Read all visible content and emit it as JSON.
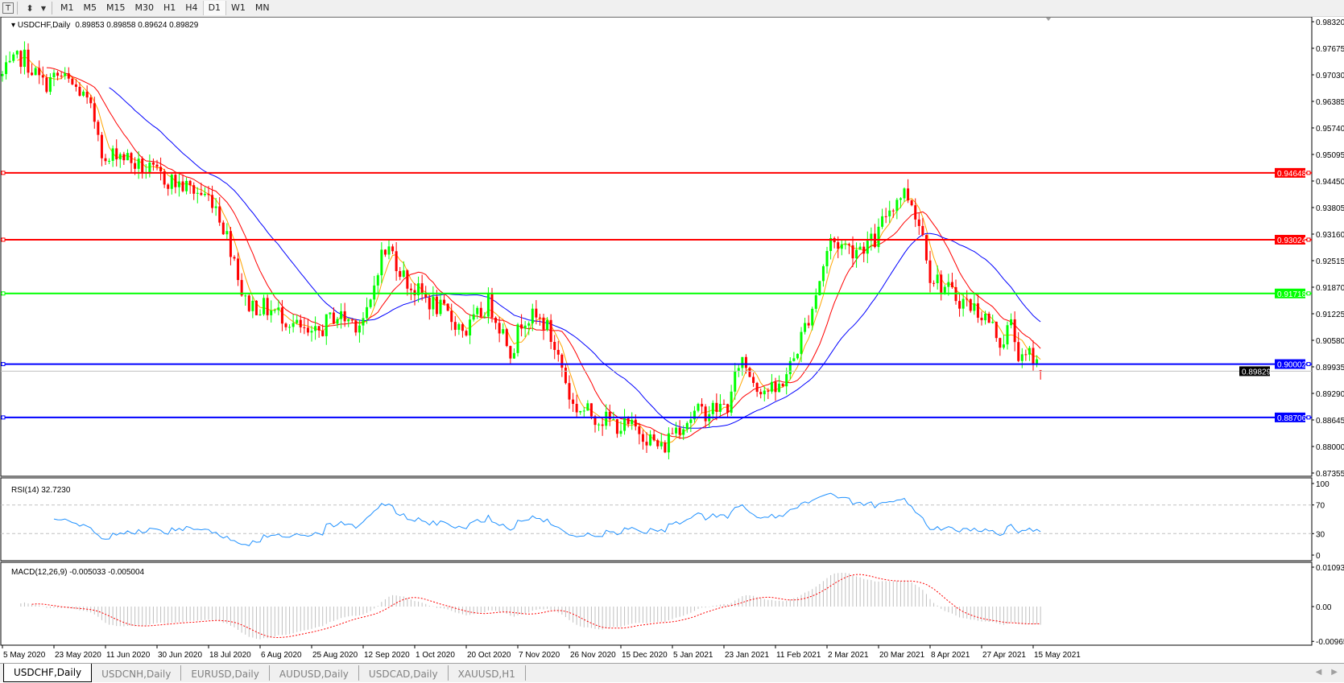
{
  "toolbar": {
    "icons": [
      "text-tool-icon",
      "arrow-shapes-icon"
    ],
    "text_icon_glyph": "T",
    "shapes_icon_glyph": "⬍",
    "dropdown_glyph": "▼",
    "timeframes": [
      "M1",
      "M5",
      "M15",
      "M30",
      "H1",
      "H4",
      "D1",
      "W1",
      "MN"
    ],
    "active_timeframe": "D1"
  },
  "chart": {
    "symbol_label": "USDCHF,Daily",
    "ohlc": "0.89853 0.89858 0.89624 0.89829",
    "last_ohlc": {
      "open": 0.89853,
      "high": 0.89858,
      "low": 0.89624,
      "close": 0.89829
    },
    "current_price": "0.89829",
    "bull_color": "#00ff00",
    "bear_color": "#ff0000",
    "price_axis": [
      "0.98320",
      "0.97675",
      "0.97030",
      "0.96385",
      "0.95740",
      "0.95095",
      "0.94450",
      "0.93805",
      "0.93160",
      "0.92515",
      "0.91870",
      "0.91225",
      "0.90580",
      "0.89935",
      "0.89290",
      "0.88645",
      "0.88000",
      "0.87355"
    ],
    "price_range": [
      0.87355,
      0.9832
    ],
    "levels": [
      {
        "value": "0.94648",
        "color": "#ff0000"
      },
      {
        "value": "0.93024",
        "color": "#ff0000"
      },
      {
        "value": "0.91718",
        "color": "#00ff00"
      },
      {
        "value": "0.90002",
        "color": "#0000ff"
      },
      {
        "value": "0.88706",
        "color": "#0000ff"
      }
    ],
    "moving_averages": [
      {
        "color": "#ffa500"
      },
      {
        "color": "#ff0000"
      },
      {
        "color": "#0000ff"
      }
    ],
    "date_axis": [
      "5 May 2020",
      "23 May 2020",
      "11 Jun 2020",
      "30 Jun 2020",
      "18 Jul 2020",
      "6 Aug 2020",
      "25 Aug 2020",
      "12 Sep 2020",
      "1 Oct 2020",
      "20 Oct 2020",
      "7 Nov 2020",
      "26 Nov 2020",
      "15 Dec 2020",
      "5 Jan 2021",
      "23 Jan 2021",
      "11 Feb 2021",
      "2 Mar 2021",
      "20 Mar 2021",
      "8 Apr 2021",
      "27 Apr 2021",
      "15 May 2021"
    ],
    "close_keypoints": [
      [
        "2020-05-05",
        0.97
      ],
      [
        "2020-05-12",
        0.975
      ],
      [
        "2020-05-19",
        0.968
      ],
      [
        "2020-05-25",
        0.97
      ],
      [
        "2020-06-02",
        0.966
      ],
      [
        "2020-06-08",
        0.958
      ],
      [
        "2020-06-11",
        0.948
      ],
      [
        "2020-06-15",
        0.952
      ],
      [
        "2020-06-23",
        0.948
      ],
      [
        "2020-06-30",
        0.946
      ],
      [
        "2020-07-10",
        0.943
      ],
      [
        "2020-07-20",
        0.94
      ],
      [
        "2020-07-28",
        0.925
      ],
      [
        "2020-07-31",
        0.915
      ],
      [
        "2020-08-06",
        0.914
      ],
      [
        "2020-08-14",
        0.912
      ],
      [
        "2020-08-25",
        0.906
      ],
      [
        "2020-09-02",
        0.912
      ],
      [
        "2020-09-10",
        0.91
      ],
      [
        "2020-09-14",
        0.912
      ],
      [
        "2020-09-18",
        0.926
      ],
      [
        "2020-09-22",
        0.928
      ],
      [
        "2020-09-28",
        0.92
      ],
      [
        "2020-10-01",
        0.918
      ],
      [
        "2020-10-09",
        0.914
      ],
      [
        "2020-10-20",
        0.908
      ],
      [
        "2020-10-28",
        0.915
      ],
      [
        "2020-11-05",
        0.903
      ],
      [
        "2020-11-09",
        0.912
      ],
      [
        "2020-11-17",
        0.91
      ],
      [
        "2020-11-23",
        0.9
      ],
      [
        "2020-11-27",
        0.89
      ],
      [
        "2020-12-07",
        0.887
      ],
      [
        "2020-12-15",
        0.885
      ],
      [
        "2020-12-23",
        0.884
      ],
      [
        "2021-01-01",
        0.879
      ],
      [
        "2021-01-05",
        0.884
      ],
      [
        "2021-01-13",
        0.888
      ],
      [
        "2021-01-25",
        0.89
      ],
      [
        "2021-01-29",
        0.902
      ],
      [
        "2021-02-04",
        0.895
      ],
      [
        "2021-02-11",
        0.893
      ],
      [
        "2021-02-17",
        0.9
      ],
      [
        "2021-02-25",
        0.915
      ],
      [
        "2021-03-03",
        0.93
      ],
      [
        "2021-03-11",
        0.928
      ],
      [
        "2021-03-19",
        0.93
      ],
      [
        "2021-03-23",
        0.937
      ],
      [
        "2021-03-29",
        0.942
      ],
      [
        "2021-04-01",
        0.94
      ],
      [
        "2021-04-06",
        0.93
      ],
      [
        "2021-04-08",
        0.922
      ],
      [
        "2021-04-16",
        0.917
      ],
      [
        "2021-04-26",
        0.913
      ],
      [
        "2021-04-30",
        0.91
      ],
      [
        "2021-05-04",
        0.905
      ],
      [
        "2021-05-07",
        0.91
      ],
      [
        "2021-05-11",
        0.9
      ],
      [
        "2021-05-14",
        0.9025
      ],
      [
        "2021-05-18",
        0.89829
      ]
    ]
  },
  "rsi": {
    "label": "RSI(14) 32.7230",
    "axis": [
      "100",
      "70",
      "30",
      "0"
    ],
    "levels": [
      70,
      30
    ],
    "color": "#1e90ff"
  },
  "macd": {
    "label": "MACD(12,26,9) -0.005033 -0.005004",
    "axis_top": "0.010933",
    "axis_zero": "0.00",
    "axis_bottom": "-0.00965",
    "range": [
      -0.00965,
      0.010933
    ],
    "histogram_color": "#c0c0c0",
    "signal_color": "#ff0000"
  },
  "tabs": [
    {
      "label": "USDCHF,Daily",
      "active": true
    },
    {
      "label": "USDCNH,Daily"
    },
    {
      "label": "EURUSD,Daily"
    },
    {
      "label": "AUDUSD,Daily"
    },
    {
      "label": "USDCAD,Daily"
    },
    {
      "label": "XAUUSD,H1"
    }
  ],
  "tab_scroll": {
    "left": "◀",
    "right": "▶"
  }
}
